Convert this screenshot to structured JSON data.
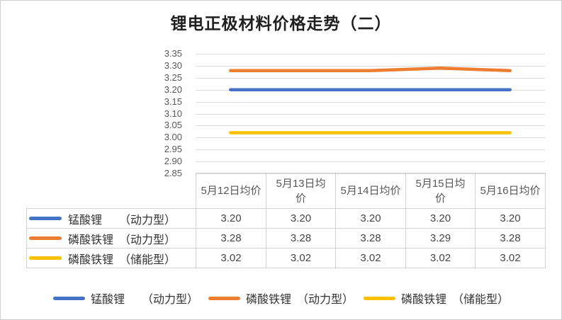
{
  "title": {
    "text": "锂电正极材料价格走势（二）",
    "color": "#1f1f1f"
  },
  "chart_data": {
    "type": "line",
    "categories": [
      "5月12日均价",
      "5月13日均价",
      "5月14日均价",
      "5月15日均价",
      "5月16日均价"
    ],
    "series": [
      {
        "name": "锰酸锂　　（动力型）",
        "color": "#4472C4",
        "values": [
          3.2,
          3.2,
          3.2,
          3.2,
          3.2
        ]
      },
      {
        "name": "磷酸铁锂　（动力型）",
        "color": "#ED7D31",
        "values": [
          3.28,
          3.28,
          3.28,
          3.29,
          3.28
        ]
      },
      {
        "name": "磷酸铁锂　（储能型）",
        "color": "#FFC000",
        "values": [
          3.02,
          3.02,
          3.02,
          3.02,
          3.02
        ]
      }
    ],
    "ylim": [
      2.85,
      3.35
    ],
    "ytick_step": 0.05,
    "y_tick_labels": [
      "3.35",
      "3.30",
      "3.25",
      "3.20",
      "3.15",
      "3.10",
      "3.05",
      "3.00",
      "2.95",
      "2.90",
      "2.85"
    ],
    "value_decimals": 2,
    "grid": true,
    "gridline_color": "#dcdcdc",
    "legend_position": "bottom",
    "data_table_shown": true
  },
  "table": {
    "row_labels": [
      "锰酸锂　　（动力型）",
      "磷酸铁锂　（动力型）",
      "磷酸铁锂　（储能型）"
    ],
    "column_headers": [
      "5月12日均价",
      "5月13日均价",
      "5月14日均价",
      "5月15日均价",
      "5月16日均价"
    ],
    "rows": [
      [
        "3.20",
        "3.20",
        "3.20",
        "3.20",
        "3.20"
      ],
      [
        "3.28",
        "3.28",
        "3.28",
        "3.29",
        "3.28"
      ],
      [
        "3.02",
        "3.02",
        "3.02",
        "3.02",
        "3.02"
      ]
    ]
  },
  "colors": {
    "series_blue": "#4472C4",
    "series_orange": "#ED7D31",
    "series_yellow": "#FFC000",
    "gridline": "#dcdcdc",
    "table_border": "#d2d2d2",
    "axis_text": "#595959",
    "frame_border": "#cfcfcf"
  }
}
